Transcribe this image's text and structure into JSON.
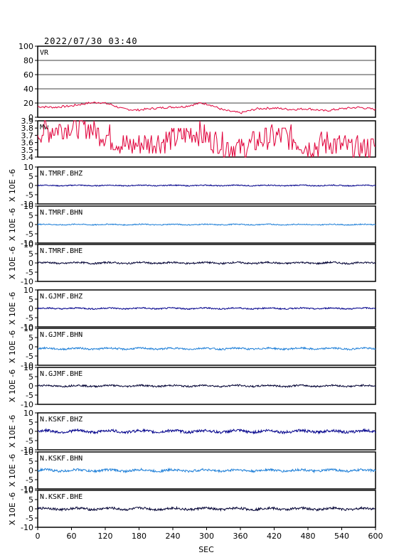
{
  "header": {
    "timestamp": "2022/07/30 03:40"
  },
  "colors": {
    "red": "#e0003a",
    "navy": "#00008b",
    "sky": "#1e7fd8",
    "ink": "#000033"
  },
  "chart_data": {
    "type": "line",
    "xlabel": "SEC",
    "xlim": [
      0,
      600
    ],
    "xticks": [
      0,
      60,
      120,
      180,
      240,
      300,
      360,
      420,
      480,
      540,
      600
    ],
    "yunit": "X 10E -6",
    "panels": [
      {
        "name": "VR",
        "ylim": [
          0,
          100
        ],
        "yticks": [
          0,
          20,
          40,
          60,
          80,
          100
        ],
        "grid": true,
        "color": "red",
        "points": [
          [
            0,
            15
          ],
          [
            30,
            14
          ],
          [
            60,
            16
          ],
          [
            90,
            20
          ],
          [
            110,
            21
          ],
          [
            130,
            18
          ],
          [
            150,
            12
          ],
          [
            175,
            10
          ],
          [
            200,
            12
          ],
          [
            230,
            14
          ],
          [
            260,
            15
          ],
          [
            290,
            20
          ],
          [
            305,
            18
          ],
          [
            330,
            10
          ],
          [
            360,
            6
          ],
          [
            390,
            12
          ],
          [
            420,
            13
          ],
          [
            450,
            11
          ],
          [
            480,
            12
          ],
          [
            510,
            9
          ],
          [
            540,
            12
          ],
          [
            570,
            14
          ],
          [
            600,
            11
          ]
        ]
      },
      {
        "name": "Mw",
        "ylim": [
          3.4,
          3.9
        ],
        "yticks": [
          3.4,
          3.5,
          3.6,
          3.7,
          3.8,
          3.9
        ],
        "grid": false,
        "color": "red",
        "points": [
          [
            0,
            3.75
          ],
          [
            40,
            3.8
          ],
          [
            80,
            3.85
          ],
          [
            120,
            3.7
          ],
          [
            160,
            3.55
          ],
          [
            200,
            3.6
          ],
          [
            240,
            3.65
          ],
          [
            280,
            3.75
          ],
          [
            320,
            3.6
          ],
          [
            360,
            3.5
          ],
          [
            400,
            3.65
          ],
          [
            440,
            3.7
          ],
          [
            480,
            3.55
          ],
          [
            520,
            3.6
          ],
          [
            560,
            3.5
          ],
          [
            600,
            3.55
          ]
        ]
      },
      {
        "name": "N.TMRF.BHZ",
        "ylim": [
          -10,
          10
        ],
        "yticks": [
          -10,
          -5,
          0,
          5,
          10
        ],
        "color": "navy",
        "amp": 0.3,
        "base": 0
      },
      {
        "name": "N.TMRF.BHN",
        "ylim": [
          -10,
          10
        ],
        "yticks": [
          -10,
          -5,
          0,
          5,
          10
        ],
        "color": "sky",
        "amp": 0.3,
        "base": 0
      },
      {
        "name": "N.TMRF.BHE",
        "ylim": [
          -10,
          10
        ],
        "yticks": [
          -10,
          -5,
          0,
          5,
          10
        ],
        "color": "ink",
        "amp": 0.5,
        "base": 0
      },
      {
        "name": "N.GJMF.BHZ",
        "ylim": [
          -10,
          10
        ],
        "yticks": [
          -10,
          -5,
          0,
          5,
          10
        ],
        "color": "navy",
        "amp": 0.4,
        "base": 0
      },
      {
        "name": "N.GJMF.BHN",
        "ylim": [
          -10,
          10
        ],
        "yticks": [
          -10,
          -5,
          0,
          5,
          10
        ],
        "color": "sky",
        "amp": 0.5,
        "base": -1
      },
      {
        "name": "N.GJMF.BHE",
        "ylim": [
          -10,
          10
        ],
        "yticks": [
          -10,
          -5,
          0,
          5,
          10
        ],
        "color": "ink",
        "amp": 0.5,
        "base": 0
      },
      {
        "name": "N.KSKF.BHZ",
        "ylim": [
          -10,
          10
        ],
        "yticks": [
          -10,
          -5,
          0,
          5,
          10
        ],
        "color": "navy",
        "amp": 0.8,
        "base": 0
      },
      {
        "name": "N.KSKF.BHN",
        "ylim": [
          -10,
          10
        ],
        "yticks": [
          -10,
          -5,
          0,
          5,
          10
        ],
        "color": "sky",
        "amp": 0.7,
        "base": 0
      },
      {
        "name": "N.KSKF.BHE",
        "ylim": [
          -10,
          10
        ],
        "yticks": [
          -10,
          -5,
          0,
          5,
          10
        ],
        "color": "ink",
        "amp": 0.7,
        "base": 0
      }
    ]
  }
}
